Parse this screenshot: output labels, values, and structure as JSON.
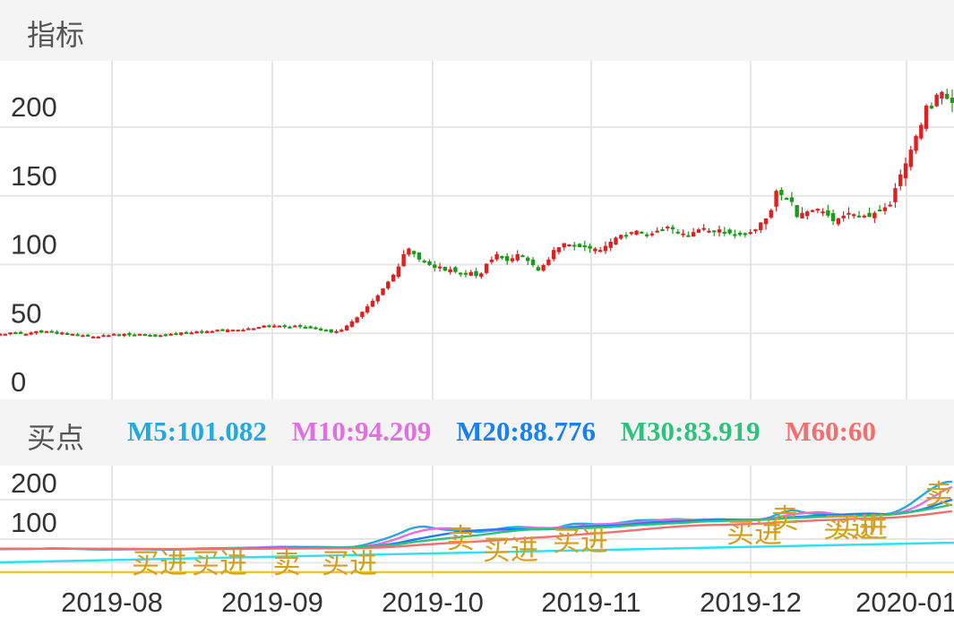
{
  "header": {
    "title": "指标"
  },
  "indicator_bar": {
    "label": "买点",
    "ma": [
      {
        "text": "M5:101.082",
        "color": "#22aadd"
      },
      {
        "text": "M10:94.209",
        "color": "#e070e0"
      },
      {
        "text": "M20:88.776",
        "color": "#1a7ff0"
      },
      {
        "text": "M30:83.919",
        "color": "#2ec27e"
      },
      {
        "text": "M60:60",
        "color": "#f07070"
      }
    ]
  },
  "chart_data": [
    {
      "type": "candlestick",
      "yticks": [
        "200",
        "150",
        "100",
        "50",
        "0"
      ],
      "ylim": [
        0,
        220
      ],
      "xticks": [
        "2019-08",
        "2019-09",
        "2019-10",
        "2019-11",
        "2019-12",
        "2020-01"
      ],
      "colors": {
        "up": "#e02020",
        "down": "#1a9a1a"
      },
      "closes": [
        34,
        34,
        35,
        35,
        34,
        34,
        35,
        36,
        35,
        36,
        36,
        34,
        35,
        34,
        34,
        33,
        33,
        32,
        32,
        32,
        33,
        33,
        34,
        33,
        34,
        33,
        33,
        34,
        33,
        33,
        32,
        33,
        33,
        34,
        34,
        35,
        35,
        35,
        36,
        35,
        36,
        36,
        37,
        36,
        37,
        37,
        37,
        37,
        38,
        38,
        39,
        40,
        39,
        40,
        40,
        39,
        39,
        40,
        39,
        39,
        38,
        38,
        37,
        37,
        35,
        36,
        37,
        40,
        43,
        46,
        50,
        54,
        58,
        62,
        67,
        72,
        77,
        83,
        92,
        96,
        92,
        88,
        86,
        84,
        82,
        83,
        80,
        81,
        79,
        78,
        77,
        79,
        76,
        78,
        85,
        88,
        92,
        89,
        87,
        89,
        92,
        90,
        87,
        84,
        80,
        84,
        88,
        95,
        97,
        100,
        99,
        98,
        97,
        97,
        96,
        96,
        95,
        98,
        101,
        104,
        106,
        105,
        108,
        109,
        108,
        105,
        107,
        109,
        110,
        112,
        110,
        108,
        107,
        105,
        108,
        110,
        111,
        109,
        108,
        110,
        108,
        107,
        106,
        106,
        107,
        108,
        110,
        115,
        118,
        124,
        138,
        135,
        132,
        130,
        119,
        122,
        123,
        124,
        125,
        123,
        120,
        116,
        118,
        120,
        122,
        121,
        120,
        120,
        119,
        122,
        124,
        126,
        128,
        140,
        150,
        158,
        168,
        178,
        186,
        200,
        198,
        208,
        210,
        205,
        202
      ]
    },
    {
      "type": "line",
      "yticks": [
        "200",
        "100"
      ],
      "ylim": [
        0,
        240
      ],
      "series": [
        {
          "name": "M5",
          "color": "#22aadd"
        },
        {
          "name": "M10",
          "color": "#e070e0"
        },
        {
          "name": "M20",
          "color": "#1a7ff0"
        },
        {
          "name": "M30",
          "color": "#2ec27e"
        },
        {
          "name": "M60",
          "color": "#f07070"
        }
      ],
      "extra_lines": [
        {
          "color": "#2ee0f0",
          "values": [
            0,
            0.4
          ]
        },
        {
          "color": "#f2c230",
          "values": [
            0,
            0
          ]
        }
      ],
      "annotations": [
        "买进",
        "买进",
        "卖",
        "买进",
        "卖",
        "买进",
        "买进",
        "买进",
        "卖",
        "买进",
        "卖",
        "买进"
      ],
      "annotation_color": "#d4a020"
    }
  ]
}
